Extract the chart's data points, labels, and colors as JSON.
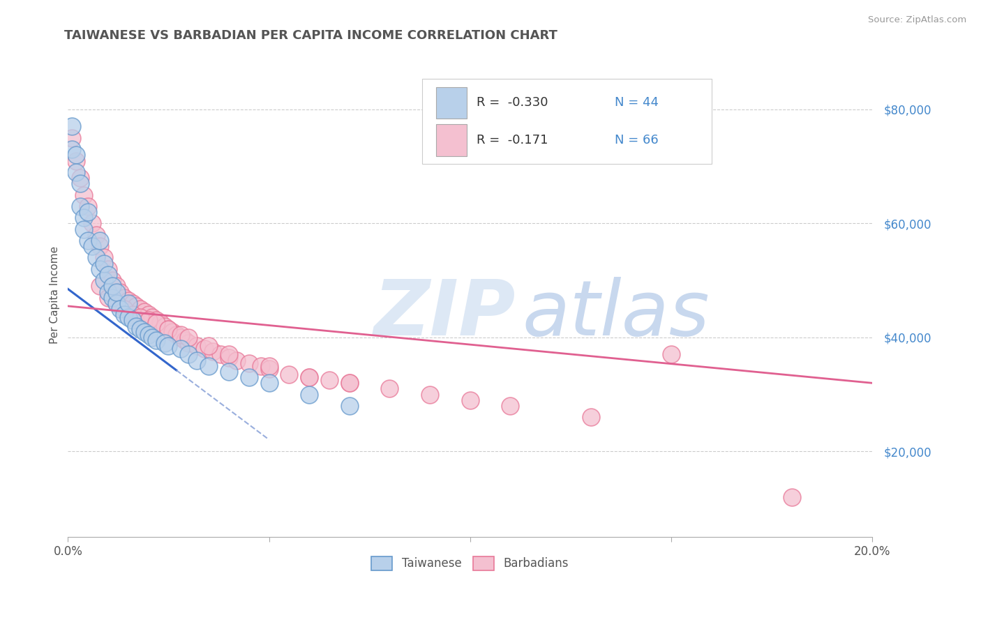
{
  "title": "TAIWANESE VS BARBADIAN PER CAPITA INCOME CORRELATION CHART",
  "source": "Source: ZipAtlas.com",
  "ylabel": "Per Capita Income",
  "xlim": [
    0.0,
    0.2
  ],
  "ylim": [
    5000,
    90000
  ],
  "yticks": [
    20000,
    40000,
    60000,
    80000
  ],
  "ytick_labels": [
    "$20,000",
    "$40,000",
    "$60,000",
    "$80,000"
  ],
  "xticks": [
    0.0,
    0.05,
    0.1,
    0.15,
    0.2
  ],
  "xtick_labels": [
    "0.0%",
    "",
    "",
    "",
    "20.0%"
  ],
  "legend_R_entries": [
    {
      "label": "Taiwanese",
      "R": -0.33,
      "N": 44,
      "patch_color": "#b8d0ea",
      "patch_edge": "#6699cc"
    },
    {
      "label": "Barbadians",
      "R": -0.171,
      "N": 66,
      "patch_color": "#f4c0d0",
      "patch_edge": "#e87898"
    }
  ],
  "bottom_legend": [
    {
      "label": "Taiwanese",
      "patch_color": "#b8d0ea",
      "patch_edge": "#6699cc"
    },
    {
      "label": "Barbadians",
      "patch_color": "#f4c0d0",
      "patch_edge": "#e87898"
    }
  ],
  "background_color": "#ffffff",
  "grid_color": "#cccccc",
  "title_color": "#555555",
  "tw_scatter_x": [
    0.001,
    0.001,
    0.002,
    0.002,
    0.003,
    0.003,
    0.004,
    0.004,
    0.005,
    0.005,
    0.006,
    0.007,
    0.008,
    0.008,
    0.009,
    0.009,
    0.01,
    0.01,
    0.011,
    0.011,
    0.012,
    0.012,
    0.013,
    0.014,
    0.015,
    0.015,
    0.016,
    0.017,
    0.018,
    0.019,
    0.02,
    0.021,
    0.022,
    0.024,
    0.025,
    0.028,
    0.03,
    0.032,
    0.035,
    0.04,
    0.045,
    0.05,
    0.06,
    0.07
  ],
  "tw_scatter_y": [
    77000,
    73000,
    72000,
    69000,
    67000,
    63000,
    61000,
    59000,
    62000,
    57000,
    56000,
    54000,
    52000,
    57000,
    50000,
    53000,
    48000,
    51000,
    47000,
    49000,
    46000,
    48000,
    45000,
    44000,
    43500,
    46000,
    43000,
    42000,
    41500,
    41000,
    40500,
    40000,
    39500,
    39000,
    38500,
    38000,
    37000,
    36000,
    35000,
    34000,
    33000,
    32000,
    30000,
    28000
  ],
  "bar_scatter_x": [
    0.001,
    0.002,
    0.003,
    0.004,
    0.005,
    0.006,
    0.007,
    0.008,
    0.009,
    0.01,
    0.011,
    0.012,
    0.013,
    0.014,
    0.015,
    0.016,
    0.017,
    0.018,
    0.019,
    0.02,
    0.021,
    0.022,
    0.023,
    0.024,
    0.025,
    0.026,
    0.027,
    0.028,
    0.029,
    0.03,
    0.032,
    0.034,
    0.036,
    0.038,
    0.04,
    0.042,
    0.045,
    0.048,
    0.05,
    0.055,
    0.06,
    0.065,
    0.07,
    0.08,
    0.09,
    0.1,
    0.11,
    0.13,
    0.15,
    0.18,
    0.008,
    0.01,
    0.012,
    0.014,
    0.016,
    0.018,
    0.02,
    0.022,
    0.025,
    0.028,
    0.03,
    0.035,
    0.04,
    0.05,
    0.06,
    0.07
  ],
  "bar_scatter_y": [
    75000,
    71000,
    68000,
    65000,
    63000,
    60000,
    58000,
    56000,
    54000,
    52000,
    50000,
    49000,
    48000,
    47000,
    46500,
    46000,
    45500,
    45000,
    44500,
    44000,
    43500,
    43000,
    42500,
    42000,
    41500,
    41000,
    40500,
    40000,
    39500,
    39000,
    38500,
    38000,
    37500,
    37000,
    36500,
    36000,
    35500,
    35000,
    34500,
    33500,
    33000,
    32500,
    32000,
    31000,
    30000,
    29000,
    28000,
    26000,
    37000,
    12000,
    49000,
    47000,
    46000,
    45000,
    44000,
    43500,
    43000,
    42500,
    41500,
    40500,
    40000,
    38500,
    37000,
    35000,
    33000,
    32000
  ],
  "tw_line": {
    "x0": 0.0,
    "y0": 48500,
    "x1": 0.035,
    "y1": 30000,
    "solid_x1": 0.027,
    "dash_x1": 0.05,
    "dash_y1": 18000
  },
  "bar_line": {
    "x0": 0.0,
    "y0": 45500,
    "x1": 0.2,
    "y1": 32000
  },
  "tw_line_color": "#3366cc",
  "tw_dash_color": "#99aedd",
  "bar_line_color": "#e06090",
  "watermark_zip_color": "#dde8f5",
  "watermark_atlas_color": "#c8d8ee"
}
